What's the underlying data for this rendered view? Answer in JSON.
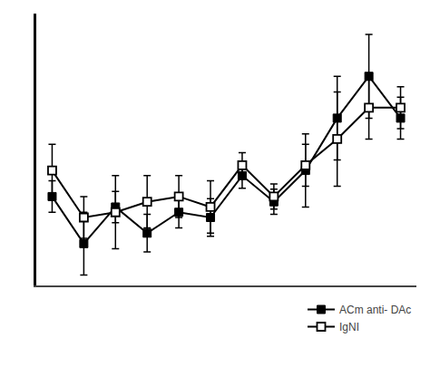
{
  "chart_data": {
    "type": "line",
    "x": [
      1,
      2,
      3,
      4,
      5,
      6,
      7,
      8,
      9,
      10,
      11,
      12
    ],
    "xlim": [
      0.5,
      12.5
    ],
    "ylim": [
      -3,
      23
    ],
    "xticks": [],
    "yticks": [],
    "tick_labels": false,
    "grid": false,
    "legend": "lower right",
    "series": [
      {
        "name": "ACm anti- DAc",
        "color": "#000000",
        "marker": "square",
        "line_style": "solid",
        "values": [
          5.5,
          1.0,
          4.5,
          2.0,
          4.0,
          3.5,
          7.5,
          5.0,
          8.0,
          13.0,
          17.0,
          13.0
        ],
        "error": [
          1.5,
          3.0,
          1.5,
          1.8,
          1.5,
          1.8,
          1.2,
          1.2,
          3.5,
          4.0,
          4.0,
          2.0
        ]
      },
      {
        "name": "IgNI",
        "color": "#000000",
        "marker": "square-open",
        "line_style": "solid",
        "values": [
          8.0,
          3.5,
          4.0,
          5.0,
          5.5,
          4.5,
          8.5,
          5.5,
          8.5,
          11.0,
          14.0,
          14.0
        ],
        "error": [
          2.5,
          2.0,
          3.5,
          2.5,
          2.0,
          2.5,
          1.2,
          1.2,
          2.0,
          4.5,
          3.0,
          2.0
        ]
      }
    ]
  }
}
